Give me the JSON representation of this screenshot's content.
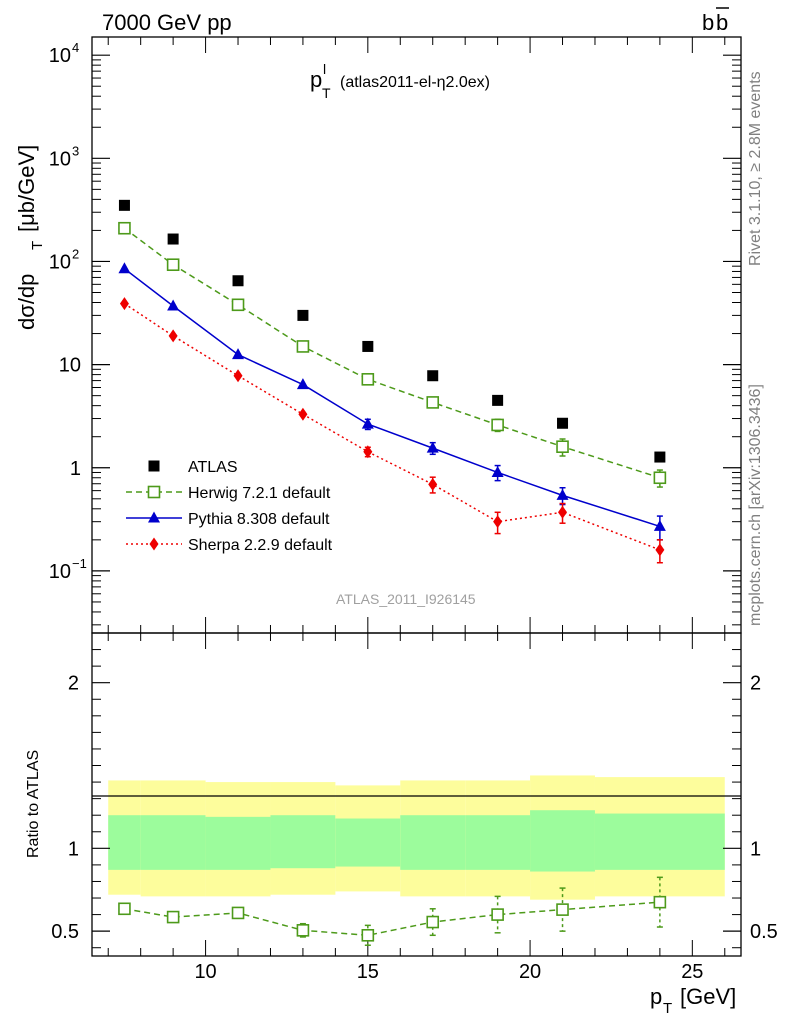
{
  "header": {
    "left": "7000 GeV pp",
    "right_base": "b",
    "right_bar": "b"
  },
  "side_labels": {
    "rivet": "Rivet 3.1.10, ≥ 2.8M events",
    "mcplots": "mcplots.cern.ch [arXiv:1306.3436]"
  },
  "chart_data": [
    {
      "type": "line",
      "title_main": "p",
      "title_sup": "l",
      "title_sub": "T",
      "title_tail": "(atlas2011-el-η2.0ex)",
      "ylabel": "dσ/dp",
      "ylabel_sub": "T",
      "ylabel_unit": "[μb/GeV]",
      "yscale": "log",
      "ylim": [
        0.025,
        15000
      ],
      "xlim": [
        6.5,
        26.5
      ],
      "yticks": [
        {
          "label": "10",
          "sup": "4",
          "value": 10000
        },
        {
          "label": "10",
          "sup": "3",
          "value": 1000
        },
        {
          "label": "10",
          "sup": "2",
          "value": 100
        },
        {
          "label": "10",
          "sup": "",
          "value": 10
        },
        {
          "label": "1",
          "sup": "",
          "value": 1
        },
        {
          "label": "10",
          "sup": "−1",
          "value": 0.1
        }
      ],
      "watermark": "ATLAS_2011_I926145",
      "legend_position": "lower-left",
      "x": [
        7.5,
        9,
        11,
        13,
        15,
        17,
        19,
        21,
        24
      ],
      "series": [
        {
          "name": "ATLAS",
          "color": "#000000",
          "marker": "square",
          "line": "none",
          "values": [
            350,
            165,
            65,
            30,
            15,
            7.8,
            4.5,
            2.7,
            1.27
          ]
        },
        {
          "name": "Herwig 7.2.1 default",
          "color": "#4d9a1a",
          "marker": "open-square",
          "line": "dashed",
          "values": [
            210,
            93,
            38,
            15,
            7.2,
            4.3,
            2.6,
            1.6,
            0.8
          ],
          "errors": [
            0,
            0,
            0,
            0,
            0,
            0,
            0.35,
            0.3,
            0.15
          ]
        },
        {
          "name": "Pythia 8.308 default",
          "color": "#0000cc",
          "marker": "triangle",
          "line": "solid",
          "values": [
            85,
            37,
            12.5,
            6.4,
            2.65,
            1.55,
            0.9,
            0.54,
            0.27
          ],
          "errors": [
            0,
            0,
            0,
            0,
            0.3,
            0.2,
            0.15,
            0.1,
            0.07
          ]
        },
        {
          "name": "Sherpa 2.2.9 default",
          "color": "#ee0000",
          "marker": "diamond",
          "line": "dotted",
          "values": [
            39,
            19,
            7.8,
            3.3,
            1.43,
            0.69,
            0.3,
            0.37,
            0.16
          ],
          "errors": [
            0,
            0,
            0,
            0,
            0.15,
            0.12,
            0.07,
            0.08,
            0.04
          ]
        }
      ]
    },
    {
      "type": "line",
      "ylabel": "Ratio to ATLAS",
      "xlabel": "p",
      "xlabel_sub": "T",
      "xlabel_unit": "[GeV]",
      "ylim": [
        0.35,
        2.3
      ],
      "xlim": [
        6.5,
        26.5
      ],
      "xticks": [
        10,
        15,
        20,
        25
      ],
      "yticks": [
        2,
        1,
        0.5
      ],
      "bins": [
        7,
        8,
        10,
        12,
        14,
        16,
        18,
        20,
        22,
        26
      ],
      "band_colors": {
        "inner": "#9cfc9c",
        "outer": "#fdfd9c"
      },
      "band_inner": [
        [
          0.87,
          1.2
        ],
        [
          0.87,
          1.2
        ],
        [
          0.87,
          1.19
        ],
        [
          0.88,
          1.2
        ],
        [
          0.89,
          1.18
        ],
        [
          0.87,
          1.2
        ],
        [
          0.87,
          1.2
        ],
        [
          0.86,
          1.23
        ],
        [
          0.87,
          1.21
        ]
      ],
      "band_outer": [
        [
          0.72,
          1.41
        ],
        [
          0.71,
          1.41
        ],
        [
          0.71,
          1.4
        ],
        [
          0.72,
          1.4
        ],
        [
          0.74,
          1.38
        ],
        [
          0.71,
          1.41
        ],
        [
          0.71,
          1.41
        ],
        [
          0.69,
          1.44
        ],
        [
          0.71,
          1.43
        ]
      ],
      "series": [
        {
          "name": "Herwig 7.2.1 default",
          "color": "#4d9a1a",
          "marker": "open-square",
          "line": "dashed",
          "x": [
            7.5,
            9,
            11,
            13,
            15,
            17,
            19,
            21,
            24
          ],
          "values": [
            0.635,
            0.585,
            0.61,
            0.505,
            0.475,
            0.555,
            0.6,
            0.63,
            0.675
          ],
          "errors": [
            0.01,
            0.012,
            0.02,
            0.04,
            0.06,
            0.08,
            0.11,
            0.13,
            0.15
          ]
        }
      ]
    }
  ]
}
